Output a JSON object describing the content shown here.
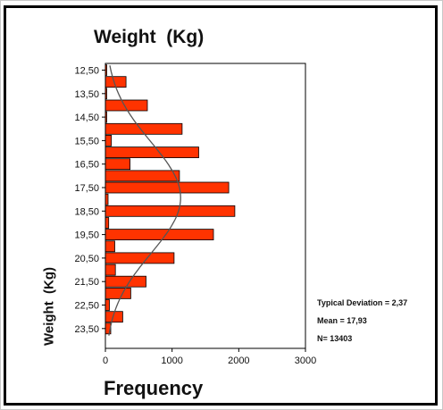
{
  "chart_data": {
    "type": "bar",
    "orientation": "horizontal",
    "title": "Weight  (Kg)",
    "xlabel": "Frequency",
    "ylabel": "Weight  (Kg)",
    "categories": [
      "12,50",
      "13,00",
      "13,50",
      "14,00",
      "14,50",
      "15,00",
      "15,50",
      "16,00",
      "16,50",
      "17,00",
      "17,50",
      "18,00",
      "18,50",
      "19,00",
      "19,50",
      "20,00",
      "20,50",
      "21,00",
      "21,50",
      "22,00",
      "22,50",
      "23,00",
      "23,50"
    ],
    "y_tick_labels": [
      "12,50",
      "13,50",
      "14,50",
      "15,50",
      "16,50",
      "17,50",
      "18,50",
      "19,50",
      "20,50",
      "21,50",
      "22,50",
      "23,50"
    ],
    "values": [
      20,
      310,
      20,
      630,
      20,
      1150,
      90,
      1400,
      370,
      1110,
      1850,
      40,
      1940,
      50,
      1620,
      140,
      1030,
      150,
      610,
      380,
      60,
      260,
      80
    ],
    "xlim": [
      0,
      3000
    ],
    "x_ticks": [
      0,
      1000,
      2000,
      3000
    ],
    "normal_curve": true,
    "legend": "none",
    "grid": false,
    "colors": {
      "bar_fill": "#ff3300",
      "bar_stroke": "#000000",
      "curve": "#555555",
      "axis": "#000000"
    },
    "annotations": [
      "Typical Deviation = 2,37",
      "Mean = 17,93",
      "N= 13403"
    ]
  }
}
